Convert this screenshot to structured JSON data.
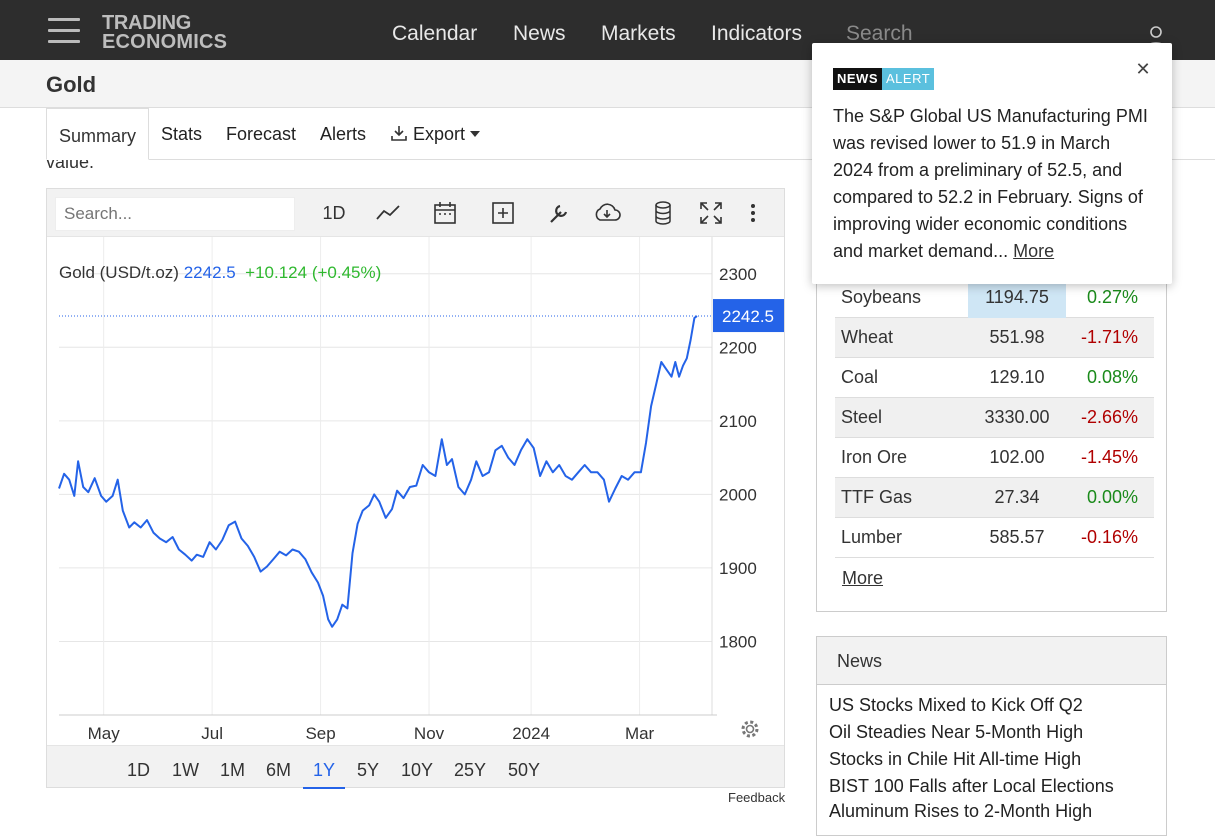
{
  "header": {
    "logo_line1": "TRADING",
    "logo_line2": "ECONOMICS",
    "nav": [
      "Calendar",
      "News",
      "Markets",
      "Indicators"
    ],
    "search_placeholder": "Search"
  },
  "page": {
    "title": "Gold",
    "tabs": [
      "Summary",
      "Stats",
      "Forecast",
      "Alerts",
      "Export"
    ],
    "value_fragment": "value."
  },
  "chart_toolbar": {
    "search_placeholder": "Search...",
    "interval_label": "1D"
  },
  "chart_data": {
    "type": "line",
    "legend_name": "Gold (USD/t.oz)",
    "legend_value": "2242.5",
    "legend_change": "+10.124 (+0.45%)",
    "last_value_label": "2242.5",
    "last_value": 2242.5,
    "ylim": [
      1700,
      2350
    ],
    "yticks": [
      1800,
      1900,
      2000,
      2100,
      2200,
      2300
    ],
    "xlim": [
      0,
      1
    ],
    "xticks": [
      {
        "label": "May",
        "x": 0.07
      },
      {
        "label": "Jul",
        "x": 0.24
      },
      {
        "label": "Sep",
        "x": 0.41
      },
      {
        "label": "Nov",
        "x": 0.58
      },
      {
        "label": "2024",
        "x": 0.74
      },
      {
        "label": "Mar",
        "x": 0.91
      }
    ],
    "grid": true,
    "series": [
      {
        "values": [
          [
            0.0,
            2008
          ],
          [
            0.008,
            2028
          ],
          [
            0.016,
            2020
          ],
          [
            0.024,
            1998
          ],
          [
            0.03,
            2045
          ],
          [
            0.038,
            2010
          ],
          [
            0.046,
            2003
          ],
          [
            0.056,
            2022
          ],
          [
            0.066,
            1998
          ],
          [
            0.074,
            1990
          ],
          [
            0.084,
            1998
          ],
          [
            0.092,
            2020
          ],
          [
            0.1,
            1978
          ],
          [
            0.11,
            1955
          ],
          [
            0.118,
            1962
          ],
          [
            0.128,
            1955
          ],
          [
            0.138,
            1965
          ],
          [
            0.148,
            1948
          ],
          [
            0.158,
            1940
          ],
          [
            0.168,
            1935
          ],
          [
            0.178,
            1942
          ],
          [
            0.188,
            1925
          ],
          [
            0.198,
            1918
          ],
          [
            0.208,
            1910
          ],
          [
            0.216,
            1918
          ],
          [
            0.226,
            1915
          ],
          [
            0.236,
            1935
          ],
          [
            0.246,
            1925
          ],
          [
            0.256,
            1938
          ],
          [
            0.266,
            1958
          ],
          [
            0.276,
            1963
          ],
          [
            0.286,
            1940
          ],
          [
            0.296,
            1930
          ],
          [
            0.306,
            1915
          ],
          [
            0.316,
            1895
          ],
          [
            0.326,
            1902
          ],
          [
            0.336,
            1912
          ],
          [
            0.346,
            1922
          ],
          [
            0.356,
            1917
          ],
          [
            0.366,
            1925
          ],
          [
            0.376,
            1922
          ],
          [
            0.386,
            1912
          ],
          [
            0.396,
            1894
          ],
          [
            0.406,
            1880
          ],
          [
            0.414,
            1862
          ],
          [
            0.422,
            1830
          ],
          [
            0.428,
            1820
          ],
          [
            0.436,
            1830
          ],
          [
            0.444,
            1850
          ],
          [
            0.452,
            1845
          ],
          [
            0.46,
            1920
          ],
          [
            0.468,
            1960
          ],
          [
            0.476,
            1978
          ],
          [
            0.486,
            1985
          ],
          [
            0.494,
            2000
          ],
          [
            0.502,
            1990
          ],
          [
            0.512,
            1968
          ],
          [
            0.522,
            1980
          ],
          [
            0.53,
            2005
          ],
          [
            0.54,
            1995
          ],
          [
            0.55,
            2010
          ],
          [
            0.56,
            2012
          ],
          [
            0.57,
            2040
          ],
          [
            0.58,
            2030
          ],
          [
            0.59,
            2025
          ],
          [
            0.6,
            2075
          ],
          [
            0.608,
            2040
          ],
          [
            0.616,
            2048
          ],
          [
            0.626,
            2010
          ],
          [
            0.636,
            2000
          ],
          [
            0.646,
            2020
          ],
          [
            0.654,
            2045
          ],
          [
            0.664,
            2025
          ],
          [
            0.674,
            2030
          ],
          [
            0.684,
            2060
          ],
          [
            0.694,
            2066
          ],
          [
            0.704,
            2050
          ],
          [
            0.714,
            2040
          ],
          [
            0.724,
            2060
          ],
          [
            0.734,
            2075
          ],
          [
            0.744,
            2063
          ],
          [
            0.754,
            2025
          ],
          [
            0.764,
            2045
          ],
          [
            0.774,
            2030
          ],
          [
            0.784,
            2040
          ],
          [
            0.794,
            2025
          ],
          [
            0.804,
            2020
          ],
          [
            0.814,
            2030
          ],
          [
            0.824,
            2040
          ],
          [
            0.834,
            2030
          ],
          [
            0.844,
            2030
          ],
          [
            0.854,
            2020
          ],
          [
            0.862,
            1990
          ],
          [
            0.872,
            2008
          ],
          [
            0.882,
            2025
          ],
          [
            0.892,
            2020
          ],
          [
            0.902,
            2030
          ],
          [
            0.912,
            2030
          ],
          [
            0.92,
            2070
          ],
          [
            0.928,
            2120
          ],
          [
            0.936,
            2150
          ],
          [
            0.944,
            2180
          ],
          [
            0.952,
            2170
          ],
          [
            0.96,
            2160
          ],
          [
            0.966,
            2180
          ],
          [
            0.972,
            2160
          ],
          [
            0.978,
            2175
          ],
          [
            0.984,
            2185
          ],
          [
            0.99,
            2210
          ],
          [
            0.996,
            2240
          ],
          [
            1.0,
            2242.5
          ]
        ]
      }
    ]
  },
  "range_buttons": [
    "1D",
    "1W",
    "1M",
    "6M",
    "1Y",
    "5Y",
    "10Y",
    "25Y",
    "50Y"
  ],
  "range_active": "1Y",
  "feedback": "Feedback",
  "commodities": [
    {
      "name": "Soybeans",
      "price": "1194.75",
      "change": "0.27%",
      "dir": "pos"
    },
    {
      "name": "Wheat",
      "price": "551.98",
      "change": "-1.71%",
      "dir": "neg"
    },
    {
      "name": "Coal",
      "price": "129.10",
      "change": "0.08%",
      "dir": "pos"
    },
    {
      "name": "Steel",
      "price": "3330.00",
      "change": "-2.66%",
      "dir": "neg"
    },
    {
      "name": "Iron Ore",
      "price": "102.00",
      "change": "-1.45%",
      "dir": "neg"
    },
    {
      "name": "TTF Gas",
      "price": "27.34",
      "change": "0.00%",
      "dir": "pos"
    },
    {
      "name": "Lumber",
      "price": "585.57",
      "change": "-0.16%",
      "dir": "neg"
    }
  ],
  "commodities_more": "More",
  "news": {
    "title": "News",
    "items": [
      "US Stocks Mixed to Kick Off Q2",
      "Oil Steadies Near 5-Month High",
      "Stocks in Chile Hit All-time High",
      "BIST 100 Falls after Local Elections",
      "Aluminum Rises to 2-Month High"
    ]
  },
  "alert": {
    "badge_news": "NEWS",
    "badge_alert": "ALERT",
    "text": "The S&P Global US Manufacturing PMI was revised lower to 51.9 in March 2024 from a preliminary of 52.5, and compared to 52.2 in February. Signs of improving wider economic conditions and market demand...",
    "more": "More"
  }
}
